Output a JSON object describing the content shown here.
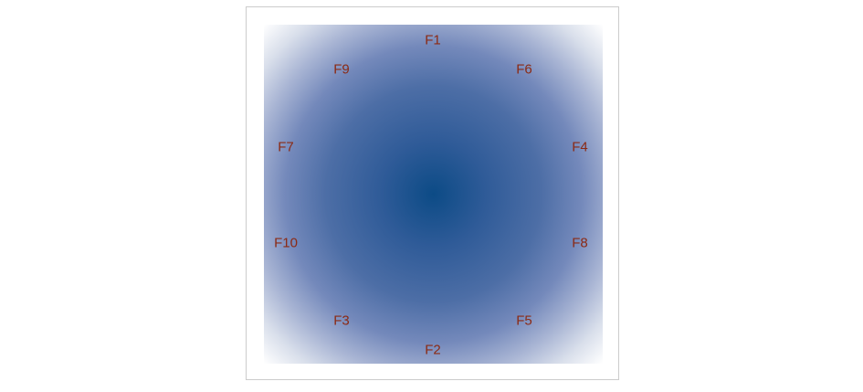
{
  "diagram": {
    "label_color": "#8b2a14",
    "center_color": "#0c4b86",
    "edge_color": "#ffffff",
    "frame_border_color": "#cccccc",
    "nodes": [
      {
        "label": "F1"
      },
      {
        "label": "F9"
      },
      {
        "label": "F6"
      },
      {
        "label": "F7"
      },
      {
        "label": "F4"
      },
      {
        "label": "F10"
      },
      {
        "label": "F8"
      },
      {
        "label": "F3"
      },
      {
        "label": "F5"
      },
      {
        "label": "F2"
      }
    ]
  }
}
